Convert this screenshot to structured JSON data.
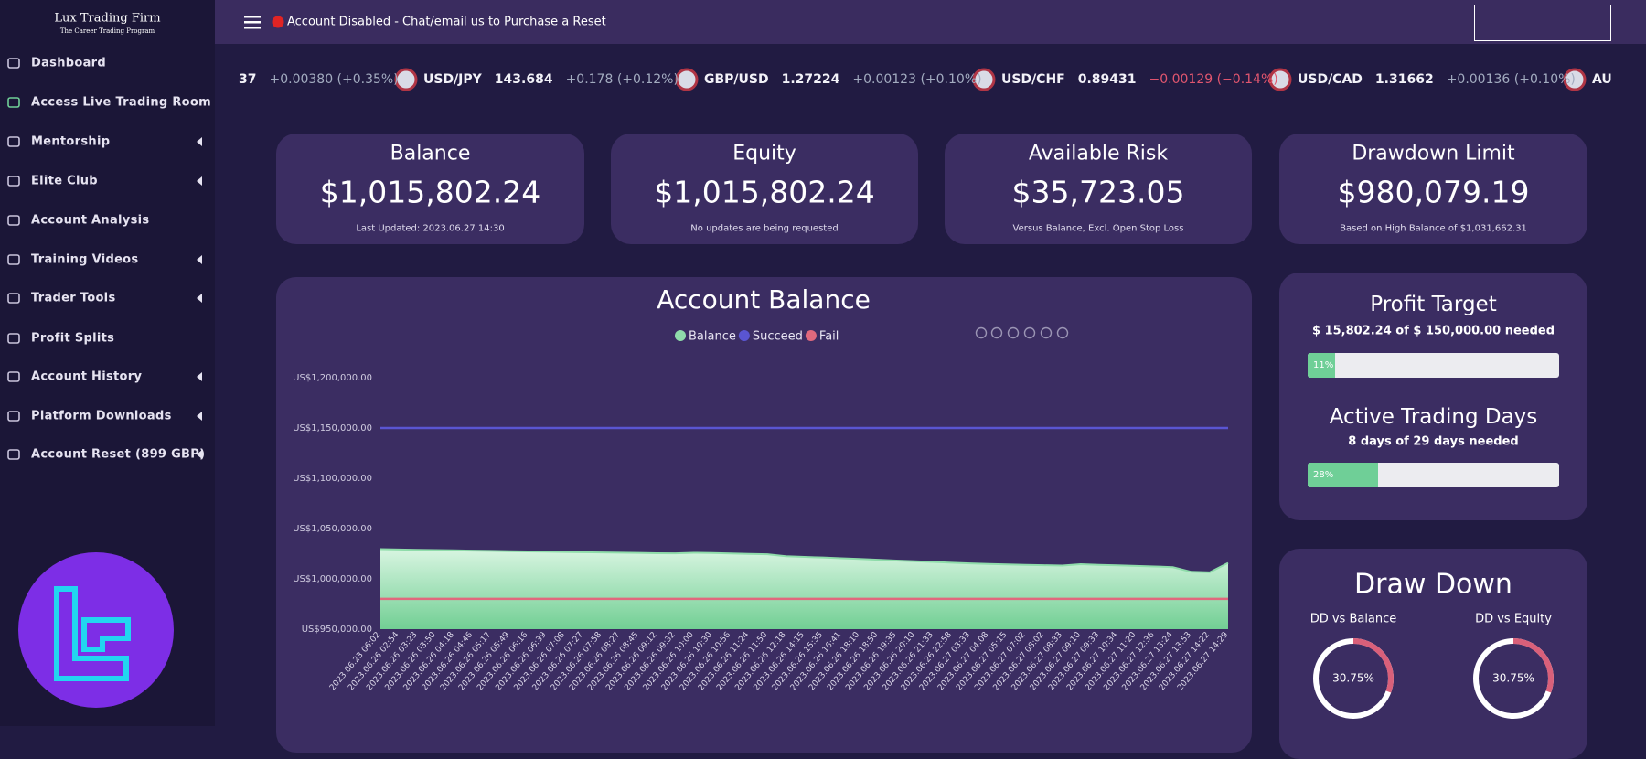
{
  "sidebar": {
    "brand": "Lux Trading Firm",
    "tagline": "The Career Trading Program",
    "menu": [
      "Dashboard",
      "Access Live Trading Room",
      "Mentorship",
      "Elite Club",
      "Account Analysis",
      "Training Videos",
      "Trader Tools",
      "Profit Splits",
      "Account History",
      "Platform Downloads",
      "Account Reset (899 GBP)"
    ]
  },
  "topbar": {
    "notice": "Account Disabled - Chat/email us to Purchase a Reset"
  },
  "ticker": [
    {
      "price": "37",
      "change": "+0.00380 (+0.35%)"
    },
    {
      "symbol": "USD/JPY",
      "price": "143.684",
      "change": "+0.178 (+0.12%)"
    },
    {
      "symbol": "GBP/USD",
      "price": "1.27224",
      "change": "+0.00123 (+0.10%)"
    },
    {
      "symbol": "USD/CHF",
      "price": "0.89431",
      "change": "−0.00129 (−0.14%)"
    },
    {
      "symbol": "USD/CAD",
      "price": "1.31662",
      "change": "+0.00136 (+0.10%)"
    },
    {
      "symbol": "AU"
    }
  ],
  "cards": [
    {
      "title": "Balance",
      "value": "$1,015,802.24",
      "note": "Last Updated: 2023.06.27 14:30"
    },
    {
      "title": "Equity",
      "value": "$1,015,802.24",
      "note": "No updates are being requested"
    },
    {
      "title": "Available Risk",
      "value": "$35,723.05",
      "note": "Versus Balance, Excl. Open Stop Loss"
    },
    {
      "title": "Drawdown Limit",
      "value": "$980,079.19",
      "note": "Based on High Balance of $1,031,662.31"
    }
  ],
  "chart_data": {
    "type": "area",
    "title": "Account Balance",
    "categories": [
      "2023.06.23 06:02",
      "2023.06.26 02:54",
      "2023.06.26 03:23",
      "2023.06.26 03:50",
      "2023.06.26 04:18",
      "2023.06.26 04:46",
      "2023.06.26 05:17",
      "2023.06.26 05:49",
      "2023.06.26 06:16",
      "2023.06.26 06:39",
      "2023.06.26 07:08",
      "2023.06.26 07:27",
      "2023.06.26 07:58",
      "2023.06.26 08:27",
      "2023.06.26 08:45",
      "2023.06.26 09:12",
      "2023.06.26 09:32",
      "2023.06.26 10:00",
      "2023.06.26 10:30",
      "2023.06.26 10:56",
      "2023.06.26 11:24",
      "2023.06.26 11:50",
      "2023.06.26 12:18",
      "2023.06.26 14:15",
      "2023.06.26 15:35",
      "2023.06.26 16:41",
      "2023.06.26 18:10",
      "2023.06.26 18:50",
      "2023.06.26 19:35",
      "2023.06.26 20:10",
      "2023.06.26 21:33",
      "2023.06.26 22:58",
      "2023.06.27 03:33",
      "2023.06.27 04:08",
      "2023.06.27 05:15",
      "2023.06.27 07:02",
      "2023.06.27 08:02",
      "2023.06.27 08:33",
      "2023.06.27 09:10",
      "2023.06.27 09:33",
      "2023.06.27 10:34",
      "2023.06.27 11:20",
      "2023.06.27 12:36",
      "2023.06.27 13:24",
      "2023.06.27 13:53",
      "2023.06.27 14:22",
      "2023.06.27 14:29"
    ],
    "series": [
      {
        "name": "Balance",
        "color": "#8fdcaa",
        "values": [
          1029500,
          1029200,
          1028900,
          1028600,
          1028400,
          1028100,
          1027800,
          1027500,
          1027300,
          1027000,
          1026700,
          1026500,
          1026300,
          1026000,
          1025800,
          1025500,
          1025300,
          1025900,
          1025700,
          1025200,
          1024800,
          1024400,
          1022500,
          1021800,
          1021200,
          1020500,
          1019800,
          1019000,
          1018200,
          1017500,
          1016800,
          1016000,
          1015300,
          1014800,
          1014300,
          1013900,
          1013500,
          1013200,
          1014500,
          1013900,
          1013400,
          1012800,
          1012300,
          1011600,
          1007000,
          1006500,
          1015802.24
        ]
      }
    ],
    "reference_lines": [
      {
        "name": "Succeed",
        "color": "#5a55d2",
        "value": 1150000
      },
      {
        "name": "Fail",
        "color": "#e0697d",
        "value": 980079.19
      }
    ],
    "ylim": [
      950000,
      1200000
    ],
    "yticks": [
      {
        "value": 950000,
        "label": "US$950,000.00"
      },
      {
        "value": 1000000,
        "label": "US$1,000,000.00"
      },
      {
        "value": 1050000,
        "label": "US$1,050,000.00"
      },
      {
        "value": 1100000,
        "label": "US$1,100,000.00"
      },
      {
        "value": 1150000,
        "label": "US$1,150,000.00"
      },
      {
        "value": 1200000,
        "label": "US$1,200,000.00"
      }
    ]
  },
  "profit_target": {
    "title": "Profit Target",
    "subtitle": "$ 15,802.24 of $ 150,000.00 needed",
    "progress": 11,
    "progress_label": "11%"
  },
  "trading_days": {
    "title": "Active Trading Days",
    "subtitle": "8 days of 29 days needed",
    "progress": 28,
    "progress_label": "28%"
  },
  "drawdown": {
    "title": "Draw Down",
    "gauges": [
      {
        "label": "DD vs Balance",
        "value": 30.75,
        "value_label": "30.75%"
      },
      {
        "label": "DD vs Equity",
        "value": 30.75,
        "value_label": "30.75%"
      }
    ]
  }
}
